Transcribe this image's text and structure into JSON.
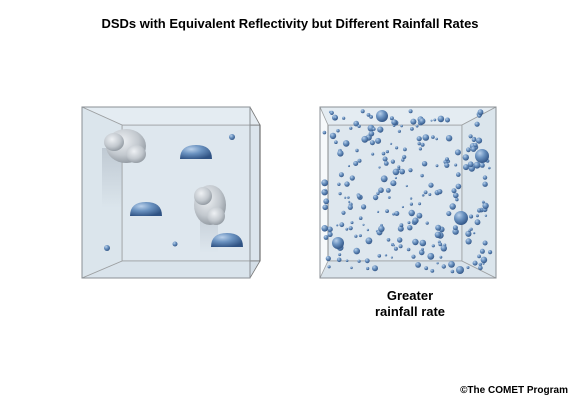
{
  "title": "DSDs with Equivalent Reflectivity but Different Rainfall Rates",
  "right_box": {
    "caption_line1": "Greater",
    "caption_line2": "rainfall rate"
  },
  "credit": "©The COMET Program",
  "colors": {
    "box_fill": "#dde6ee",
    "box_edge": "#4a4a4a",
    "drop": "#5f86b4",
    "drop_dark": "#36598a",
    "hail": "#b8bfc6"
  }
}
